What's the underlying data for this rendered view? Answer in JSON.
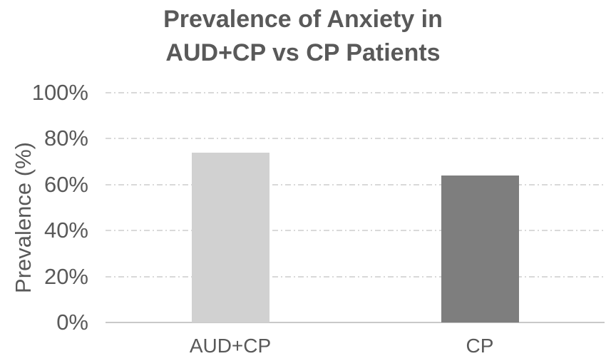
{
  "chart_data": {
    "type": "bar",
    "title": "Prevalence of Anxiety in AUD+CP vs CP Patients",
    "title_lines": [
      "Prevalence of Anxiety in",
      "AUD+CP vs CP Patients"
    ],
    "categories": [
      "AUD+CP",
      "CP"
    ],
    "values": [
      74,
      64
    ],
    "bar_colors": [
      "#d1d1d1",
      "#7e7e7e"
    ],
    "xlabel": "",
    "ylabel": "Prevalence (%)",
    "ylim": [
      0,
      100
    ],
    "ytick_step": 20,
    "ytick_labels": [
      "0%",
      "20%",
      "40%",
      "60%",
      "80%",
      "100%"
    ],
    "grid": "horizontal dash-dot",
    "legend_position": "none"
  },
  "colors": {
    "text": "#595959",
    "title_text": "#595959",
    "gridline": "#d9d9d9",
    "axis_line": "#c9c9c9",
    "background": "#ffffff"
  }
}
